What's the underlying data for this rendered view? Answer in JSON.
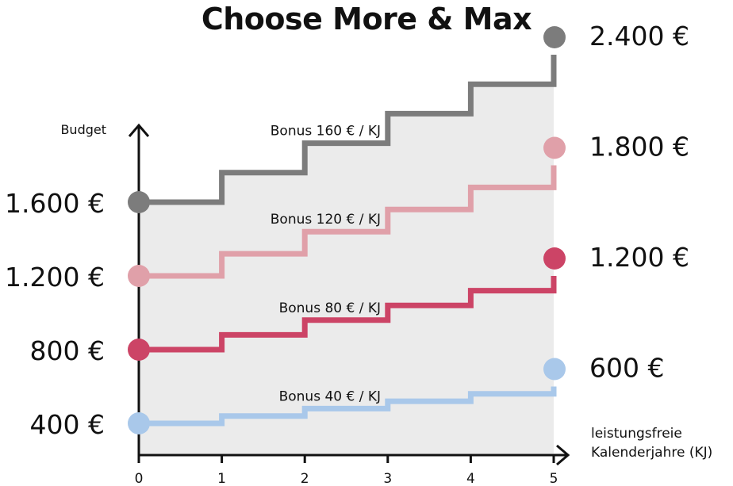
{
  "chart_data": {
    "type": "line",
    "title": "Choose More & Max",
    "ylabel": "Budget",
    "xlabel": "leistungsfreie\nKalenderjahre (KJ)",
    "x": [
      0,
      1,
      2,
      3,
      4,
      5
    ],
    "x_ticks": [
      "0",
      "1",
      "2",
      "3",
      "4",
      "5"
    ],
    "step": true,
    "series": [
      {
        "values": [
          1600,
          1760,
          1920,
          2080,
          2240,
          2400
        ],
        "start_label": "1.600 €",
        "end_label": "2.400 €",
        "bonus_label": "Bonus 160 € / KJ",
        "color": "#7c7c7c"
      },
      {
        "values": [
          1200,
          1320,
          1440,
          1560,
          1680,
          1800
        ],
        "start_label": "1.200 €",
        "end_label": "1.800 €",
        "bonus_label": "Bonus 120 € / KJ",
        "color": "#e0a0a9"
      },
      {
        "values": [
          800,
          880,
          960,
          1040,
          1120,
          1200
        ],
        "start_label": "800 €",
        "end_label": "1.200 €",
        "bonus_label": "Bonus 80 € / KJ",
        "color": "#cc4466"
      },
      {
        "values": [
          400,
          440,
          480,
          520,
          560,
          600
        ],
        "start_label": "400 €",
        "end_label": "600 €",
        "bonus_label": "Bonus 40 € / KJ",
        "color": "#a9c8ea"
      }
    ],
    "shaded_area_color": "#ebebeb",
    "grid": false,
    "legend": "none"
  }
}
